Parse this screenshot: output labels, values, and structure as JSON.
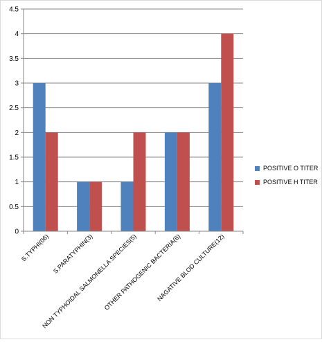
{
  "chart_data": {
    "type": "bar",
    "categories": [
      "S.TYPHI(06)",
      "S.PARATYPHIN(3)",
      "NON TYPHOIDAL SALMONELLA SPECIES(5)",
      "OTHER PATHOGENIC BACTERIA(6)",
      "NAGATIVE BLOD CULTURE(12)"
    ],
    "series": [
      {
        "name": "POSITIVE O TITER",
        "values": [
          3,
          1,
          1,
          2,
          3
        ],
        "color": "#4f81bd"
      },
      {
        "name": "POSITIVE H TITER",
        "values": [
          2,
          1,
          2,
          2,
          4
        ],
        "color": "#c0504d"
      }
    ],
    "ylim": [
      0,
      4.5
    ],
    "yticks": [
      "0",
      "0.5",
      "1",
      "1.5",
      "2",
      "2.5",
      "3",
      "3.5",
      "4",
      "4.5"
    ],
    "grid": true,
    "legend_position": "right",
    "title": "",
    "xlabel": "",
    "ylabel": ""
  }
}
